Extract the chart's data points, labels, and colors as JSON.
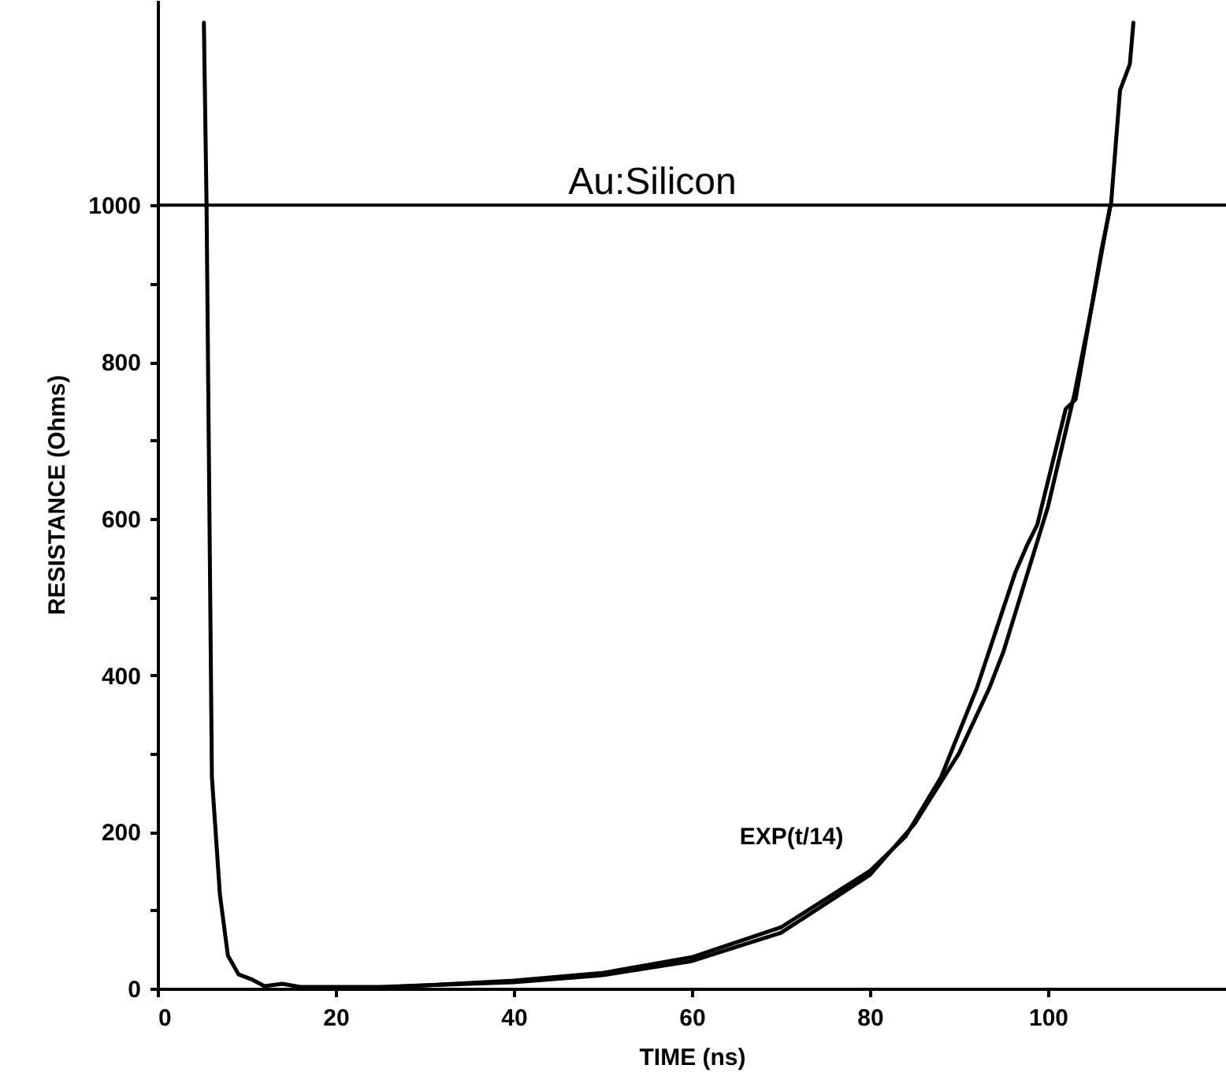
{
  "chart_data": {
    "type": "line",
    "title": "Au:Silicon",
    "xlabel": "TIME (ns)",
    "ylabel": "RESISTANCE (Ohms)",
    "xlim": [
      0,
      120
    ],
    "ylim": [
      0,
      1262
    ],
    "xticks": [
      0,
      20,
      40,
      60,
      80,
      100
    ],
    "yticks": [
      0,
      {
        "value": 100,
        "label": null
      },
      200,
      {
        "value": 300,
        "label": null
      },
      400,
      {
        "value": 500,
        "label": null
      },
      600,
      {
        "value": 700,
        "label": null
      },
      800,
      {
        "value": 900,
        "label": null
      },
      1000
    ],
    "grid": false,
    "legend": false,
    "marker": "none",
    "line_style": "solid",
    "ref_lines": [
      {
        "axis": "y",
        "value": 1000,
        "color": "#000000"
      }
    ],
    "series": [
      {
        "color": "#000000",
        "x": [
          5.2,
          5.5,
          6.1,
          7.0,
          7.9,
          9.1,
          10.5,
          12,
          14,
          16,
          20,
          25,
          30,
          40,
          50,
          60,
          70,
          80,
          84,
          88,
          92,
          96.3,
          97.7,
          98.8,
          102,
          103.1,
          106,
          107.1,
          108.1,
          109.2,
          109.6
        ],
        "values": [
          1233,
          1000,
          270,
          120,
          42,
          18,
          12,
          3,
          6,
          2,
          2,
          2,
          4,
          10,
          20,
          40,
          78,
          150,
          194,
          270,
          383,
          530,
          567,
          592,
          740,
          752,
          942,
          1003,
          1147,
          1180,
          1233
        ]
      },
      {
        "name": "EXP(t/14)",
        "color": "#000000",
        "x": [
          28,
          30,
          40,
          50,
          60,
          70,
          80,
          85,
          90,
          93.4,
          95,
          100,
          103,
          105,
          107
        ],
        "values": [
          3,
          4,
          8,
          17,
          35,
          71,
          145,
          210,
          300,
          383,
          430,
          615,
          760,
          875,
          1000
        ]
      }
    ]
  }
}
